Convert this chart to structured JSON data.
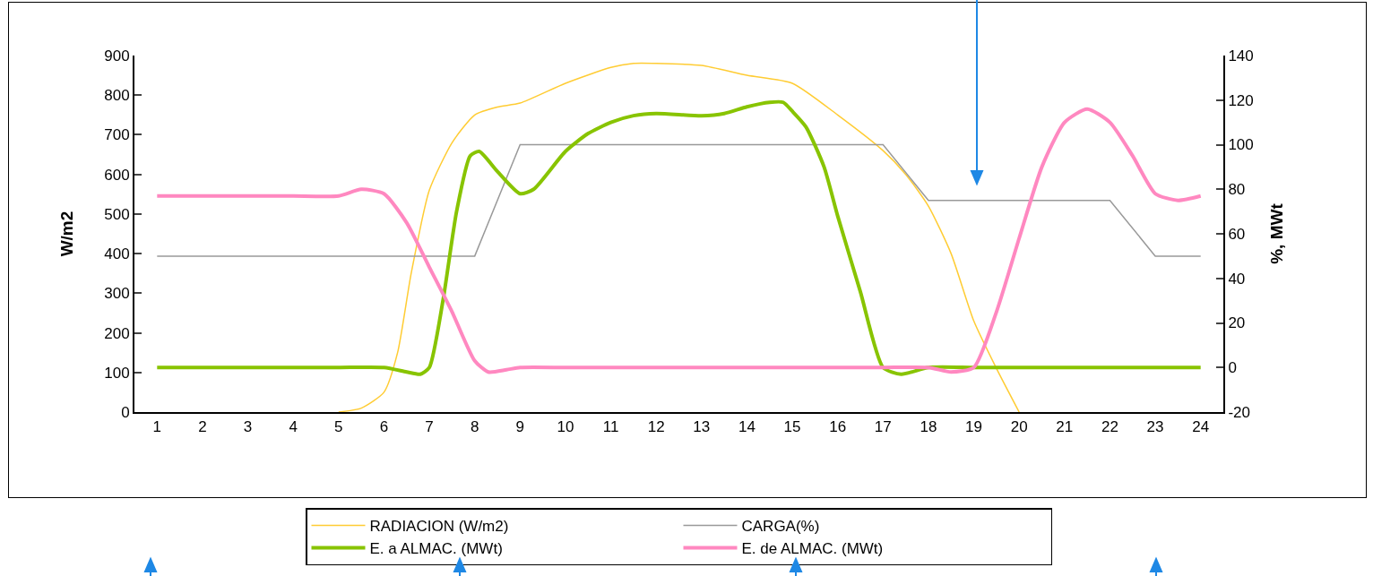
{
  "chart_data": {
    "type": "line",
    "ylabel": "W/m2",
    "y2label": "%, MWt",
    "xlim": [
      0.5,
      24.5
    ],
    "xticks": [
      1,
      2,
      3,
      4,
      5,
      6,
      7,
      8,
      9,
      10,
      11,
      12,
      13,
      14,
      15,
      16,
      17,
      18,
      19,
      20,
      21,
      22,
      23,
      24
    ],
    "ylim": [
      0,
      900
    ],
    "yticks": [
      0,
      100,
      200,
      300,
      400,
      500,
      600,
      700,
      800,
      900
    ],
    "y2lim": [
      -20,
      140
    ],
    "y2ticks": [
      -20,
      0,
      20,
      40,
      60,
      80,
      100,
      120,
      140
    ],
    "grid": false,
    "legend": "bottom",
    "marker": "none",
    "line_style": "solid",
    "series": [
      {
        "name": "RADIACION (W/m2)",
        "color": "#ffcc33",
        "x": [
          5,
          5.5,
          6,
          6.3,
          6.6,
          7,
          7.5,
          8,
          8.5,
          9,
          10,
          11,
          11.5,
          12,
          13,
          14,
          15,
          16,
          17,
          17.5,
          18,
          18.5,
          19,
          19.5,
          20
        ],
        "values": [
          0,
          10,
          50,
          150,
          350,
          560,
          680,
          750,
          770,
          780,
          830,
          870,
          880,
          880,
          875,
          850,
          830,
          750,
          660,
          600,
          520,
          400,
          230,
          110,
          0
        ]
      },
      {
        "name": "CARGA(%)",
        "color": "#999999",
        "axis": "y2",
        "x": [
          1,
          2,
          3,
          4,
          5,
          6,
          7,
          8,
          9,
          10,
          11,
          12,
          13,
          14,
          15,
          16,
          17,
          18,
          19,
          20,
          21,
          22,
          23,
          24
        ],
        "values": [
          50,
          50,
          50,
          50,
          50,
          50,
          50,
          50,
          100,
          100,
          100,
          100,
          100,
          100,
          100,
          100,
          100,
          75,
          75,
          75,
          75,
          75,
          50,
          50
        ]
      },
      {
        "name": "E. a ALMAC. (MWt)",
        "color": "#88c400",
        "axis": "y2",
        "x": [
          1,
          2,
          3,
          4,
          5,
          6,
          6.5,
          6.8,
          7,
          7.3,
          7.6,
          7.9,
          8.1,
          8.5,
          9,
          9.3,
          10,
          10.5,
          11,
          11.5,
          12,
          13,
          13.5,
          14,
          14.5,
          14.8,
          15,
          15.3,
          15.7,
          16,
          16.5,
          17,
          17.4,
          18,
          19,
          20,
          21,
          22,
          23,
          24
        ],
        "values": [
          0,
          0,
          0,
          0,
          0,
          0,
          -2,
          -3,
          0,
          30,
          70,
          95,
          97,
          88,
          78,
          80,
          97,
          105,
          110,
          113,
          114,
          113,
          114,
          117,
          119,
          119,
          115,
          108,
          90,
          68,
          34,
          0,
          -3,
          0,
          0,
          0,
          0,
          0,
          0,
          0
        ]
      },
      {
        "name": "E. de ALMAC. (MWt)",
        "color": "#ff88c0",
        "axis": "y2",
        "x": [
          1,
          2,
          3,
          4,
          5,
          5.5,
          6,
          6.5,
          7,
          7.5,
          8,
          8.3,
          8.7,
          9,
          10,
          11,
          12,
          13,
          14,
          15,
          16,
          17,
          18,
          18.5,
          19,
          19.5,
          20,
          20.5,
          21,
          21.5,
          22,
          22.5,
          23,
          23.5,
          24
        ],
        "values": [
          77,
          77,
          77,
          77,
          77,
          80,
          78,
          65,
          45,
          25,
          3,
          -2,
          -1,
          0,
          0,
          0,
          0,
          0,
          0,
          0,
          0,
          0,
          0,
          -2,
          0,
          25,
          58,
          90,
          110,
          116,
          110,
          95,
          78,
          75,
          77
        ]
      }
    ]
  }
}
